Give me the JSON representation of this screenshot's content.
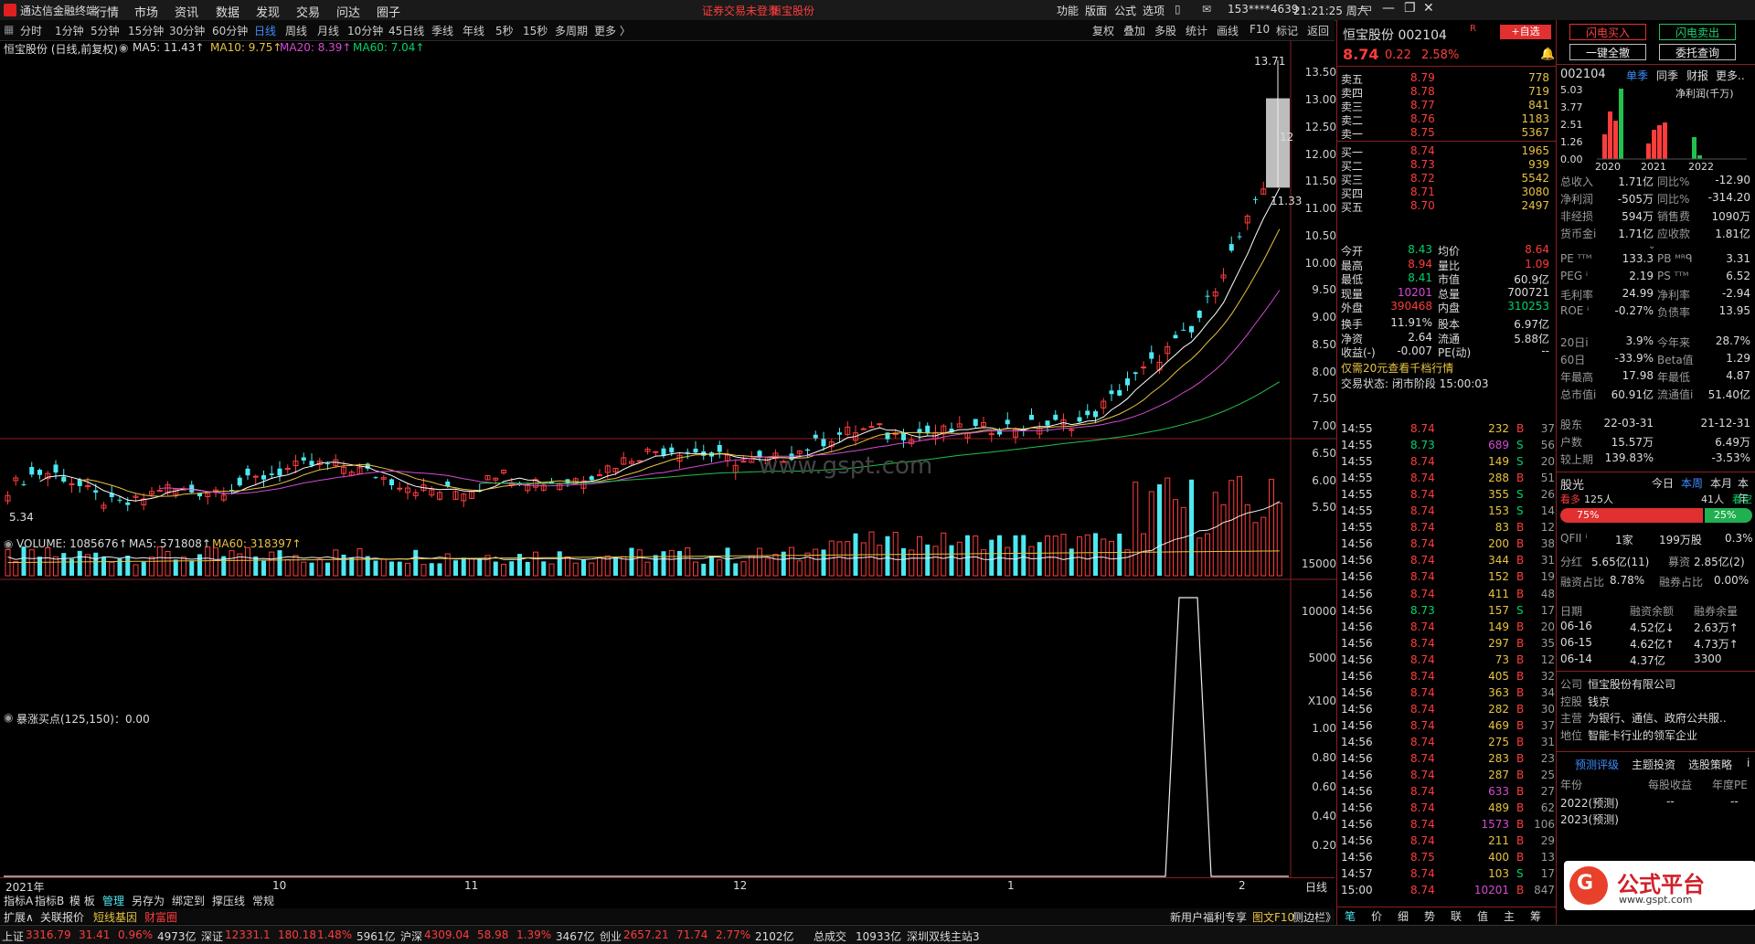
{
  "app": {
    "name": "通达信金融终端",
    "menus": [
      "行情",
      "市场",
      "资讯",
      "数据",
      "发现",
      "交易",
      "问达",
      "圈子"
    ],
    "notice": "证券交易未登录",
    "stock_name_top": "恒宝股份",
    "right_menus": [
      "功能",
      "版面",
      "公式",
      "选项"
    ],
    "user": "153****4639",
    "clock": "21:21:25 周六"
  },
  "toolbar": {
    "items": [
      "分时",
      "1分钟",
      "5分钟",
      "15分钟",
      "30分钟",
      "60分钟",
      "日线",
      "周线",
      "月线",
      "10分钟",
      "45日线",
      "季线",
      "年线",
      "5秒",
      "15秒",
      "多周期",
      "更多 〉"
    ],
    "active": "日线",
    "right_items": [
      "复权",
      "叠加",
      "多股",
      "统计",
      "画线",
      "F10",
      "标记",
      "返回"
    ]
  },
  "main_chart": {
    "title": "恒宝股份 (日线,前复权)",
    "ma5": "MA5: 11.43↑",
    "ma10": "MA10: 9.75↑",
    "ma20": "MA20: 8.39↑",
    "ma60": "MA60: 7.04↑",
    "high_label": "13.71",
    "low_label": "5.34",
    "mid_label": "11.33",
    "box_label": "12",
    "watermark": "www.gspt.com",
    "price_axis": [
      "13.50",
      "13.00",
      "12.50",
      "12.00",
      "11.50",
      "11.00",
      "10.50",
      "10.00",
      "9.50",
      "9.00",
      "8.50",
      "8.00",
      "7.50",
      "7.00",
      "6.50",
      "6.00",
      "5.50"
    ]
  },
  "volume_chart": {
    "label": "VOLUME: 1085676↑",
    "ma5": "MA5: 571808↑",
    "ma60": "MA60: 318397↑",
    "axis": [
      "15000",
      "10000",
      "5000",
      "X100"
    ]
  },
  "indicator_chart": {
    "label": "暴涨买点(125,150)：0.00",
    "axis": [
      "1.00",
      "0.80",
      "0.60",
      "0.40",
      "0.20"
    ]
  },
  "date_axis": [
    "2021年",
    "10",
    "11",
    "12",
    "1",
    "2"
  ],
  "date_axis_right": "日线",
  "bottom_tabs": [
    "指标A",
    "指标B",
    "模 板",
    "管理",
    "另存为",
    "绑定到",
    "撑压线",
    "常规"
  ],
  "bottom_tabs2": [
    "扩展∧",
    "关联报价",
    "短线基因",
    "财富圈"
  ],
  "bottom_tabs2_right": [
    "新用户福利专享",
    "图文F10",
    "侧边栏》"
  ],
  "quote": {
    "name": "恒宝股份 002104",
    "price": "8.74",
    "change": "0.22",
    "pct": "2.58%",
    "add_btn": "+自选",
    "sells": [
      {
        "label": "卖五",
        "price": "8.79",
        "vol": "778"
      },
      {
        "label": "卖四",
        "price": "8.78",
        "vol": "719"
      },
      {
        "label": "卖三",
        "price": "8.77",
        "vol": "841"
      },
      {
        "label": "卖二",
        "price": "8.76",
        "vol": "1183"
      },
      {
        "label": "卖一",
        "price": "8.75",
        "vol": "5367"
      }
    ],
    "buys": [
      {
        "label": "买一",
        "price": "8.74",
        "vol": "1965"
      },
      {
        "label": "买二",
        "price": "8.73",
        "vol": "939"
      },
      {
        "label": "买三",
        "price": "8.72",
        "vol": "5542"
      },
      {
        "label": "买四",
        "price": "8.71",
        "vol": "3080"
      },
      {
        "label": "买五",
        "price": "8.70",
        "vol": "2497"
      }
    ],
    "stats": [
      {
        "k1": "今开",
        "v1": "8.43",
        "c1": "green",
        "k2": "均价",
        "v2": "8.64",
        "c2": "red"
      },
      {
        "k1": "最高",
        "v1": "8.94",
        "c1": "red",
        "k2": "量比",
        "v2": "1.09",
        "c2": "red"
      },
      {
        "k1": "最低",
        "v1": "8.41",
        "c1": "green",
        "k2": "市值",
        "v2": "60.9亿",
        "c2": "white"
      },
      {
        "k1": "现量",
        "v1": "10201",
        "c1": "purple",
        "k2": "总量",
        "v2": "700721",
        "c2": "white"
      },
      {
        "k1": "外盘",
        "v1": "390468",
        "c1": "red",
        "k2": "内盘",
        "v2": "310253",
        "c2": "green"
      }
    ],
    "stats2": [
      {
        "k1": "换手",
        "v1": "11.91%",
        "k2": "股本",
        "v2": "6.97亿"
      },
      {
        "k1": "净资",
        "v1": "2.64",
        "k2": "流通",
        "v2": "5.88亿"
      },
      {
        "k1": "收益(-)",
        "v1": "-0.007",
        "k2": "PE(动)",
        "v2": "--"
      }
    ],
    "promo": "仅需20元查看千档行情",
    "trade_status": "交易状态: 闭市阶段 15:00:03",
    "ticks": [
      {
        "t": "14:55",
        "p": "8.74",
        "v": "232",
        "bs": "B",
        "n": "37"
      },
      {
        "t": "14:55",
        "p": "8.73",
        "v": "689",
        "bs": "S",
        "n": "56"
      },
      {
        "t": "14:55",
        "p": "8.74",
        "v": "149",
        "bs": "S",
        "n": "20"
      },
      {
        "t": "14:55",
        "p": "8.74",
        "v": "288",
        "bs": "B",
        "n": "51"
      },
      {
        "t": "14:55",
        "p": "8.74",
        "v": "355",
        "bs": "S",
        "n": "26"
      },
      {
        "t": "14:55",
        "p": "8.74",
        "v": "153",
        "bs": "S",
        "n": "14"
      },
      {
        "t": "14:55",
        "p": "8.74",
        "v": "83",
        "bs": "B",
        "n": "12"
      },
      {
        "t": "14:56",
        "p": "8.74",
        "v": "200",
        "bs": "B",
        "n": "38"
      },
      {
        "t": "14:56",
        "p": "8.74",
        "v": "344",
        "bs": "B",
        "n": "31"
      },
      {
        "t": "14:56",
        "p": "8.74",
        "v": "152",
        "bs": "B",
        "n": "19"
      },
      {
        "t": "14:56",
        "p": "8.74",
        "v": "411",
        "bs": "B",
        "n": "48"
      },
      {
        "t": "14:56",
        "p": "8.73",
        "v": "157",
        "bs": "S",
        "n": "17"
      },
      {
        "t": "14:56",
        "p": "8.74",
        "v": "149",
        "bs": "B",
        "n": "20"
      },
      {
        "t": "14:56",
        "p": "8.74",
        "v": "297",
        "bs": "B",
        "n": "35"
      },
      {
        "t": "14:56",
        "p": "8.74",
        "v": "73",
        "bs": "B",
        "n": "12"
      },
      {
        "t": "14:56",
        "p": "8.74",
        "v": "405",
        "bs": "B",
        "n": "32"
      },
      {
        "t": "14:56",
        "p": "8.74",
        "v": "363",
        "bs": "B",
        "n": "34"
      },
      {
        "t": "14:56",
        "p": "8.74",
        "v": "282",
        "bs": "B",
        "n": "30"
      },
      {
        "t": "14:56",
        "p": "8.74",
        "v": "469",
        "bs": "B",
        "n": "37"
      },
      {
        "t": "14:56",
        "p": "8.74",
        "v": "275",
        "bs": "B",
        "n": "31"
      },
      {
        "t": "14:56",
        "p": "8.74",
        "v": "283",
        "bs": "B",
        "n": "23"
      },
      {
        "t": "14:56",
        "p": "8.74",
        "v": "287",
        "bs": "B",
        "n": "25"
      },
      {
        "t": "14:56",
        "p": "8.74",
        "v": "633",
        "bs": "B",
        "n": "27"
      },
      {
        "t": "14:56",
        "p": "8.74",
        "v": "489",
        "bs": "B",
        "n": "62"
      },
      {
        "t": "14:56",
        "p": "8.74",
        "v": "1573",
        "bs": "B",
        "n": "106"
      },
      {
        "t": "14:56",
        "p": "8.74",
        "v": "211",
        "bs": "B",
        "n": "29"
      },
      {
        "t": "14:56",
        "p": "8.75",
        "v": "400",
        "bs": "B",
        "n": "13"
      },
      {
        "t": "14:57",
        "p": "8.74",
        "v": "103",
        "bs": "S",
        "n": "17"
      },
      {
        "t": "15:00",
        "p": "8.74",
        "v": "10201",
        "bs": "B",
        "n": "847"
      }
    ],
    "bottom_tabs": [
      "笔",
      "价",
      "细",
      "势",
      "联",
      "值",
      "主",
      "筹"
    ]
  },
  "fundamental": {
    "buttons": [
      "闪电买入",
      "闪电卖出",
      "一键全撤",
      "委托查询"
    ],
    "code": "002104",
    "tabs": [
      "单季",
      "同季",
      "财报",
      "更多.."
    ],
    "tab_active": "单季",
    "bar_title": "净利润(千万)",
    "bar_axis": [
      "5.03",
      "3.77",
      "2.51",
      "1.26",
      "0.00"
    ],
    "bar_years": [
      "2020",
      "2021",
      "2022"
    ],
    "fin_rows": [
      {
        "k1": "总收入",
        "v1": "1.71亿",
        "k2": "同比%",
        "v2": "-12.90"
      },
      {
        "k1": "净利润",
        "v1": "-505万",
        "k2": "同比%",
        "v2": "-314.20"
      },
      {
        "k1": "非经损",
        "v1": "594万",
        "k2": "销售费",
        "v2": "1090万"
      },
      {
        "k1": "货币金i",
        "v1": "1.71亿",
        "k2": "应收款",
        "v2": "1.81亿"
      }
    ],
    "val_rows": [
      {
        "k1": "PE ᵀᵀᴹ",
        "v1": "133.3",
        "k2": "PB ᴹᴿᑫ",
        "v2": "3.31"
      },
      {
        "k1": "PEG ⁱ",
        "v1": "2.19",
        "k2": "PS ᵀᵀᴹ",
        "v2": "6.52"
      },
      {
        "k1": "毛利率",
        "v1": "24.99",
        "k2": "净利率",
        "v2": "-2.94"
      },
      {
        "k1": "ROE ⁱ",
        "v1": "-0.27%",
        "k2": "负债率",
        "v2": "13.95"
      }
    ],
    "perf_rows": [
      {
        "k1": "20日i",
        "v1": "3.9%",
        "k2": "今年来",
        "v2": "28.7%"
      },
      {
        "k1": "60日",
        "v1": "-33.9%",
        "k2": "Beta值",
        "v2": "1.29"
      },
      {
        "k1": "年最高",
        "v1": "17.98",
        "k2": "年最低",
        "v2": "4.87"
      },
      {
        "k1": "总市值i",
        "v1": "60.91亿",
        "k2": "流通值i",
        "v2": "51.40亿"
      }
    ],
    "holder_rows": [
      {
        "k1": "股东",
        "v1": "22-03-31",
        "v2": "21-12-31"
      },
      {
        "k1": "户数",
        "v1": "15.57万",
        "v2": "6.49万"
      },
      {
        "k1": "较上期",
        "v1": "139.83%",
        "v2": "-3.53%"
      }
    ],
    "sentiment": {
      "title": "股光",
      "periods": [
        "今日",
        "本周",
        "本月",
        "本年"
      ],
      "period_active": "本周",
      "bull_label": "看多",
      "bull_count": "125人",
      "bear_count": "41人",
      "bear_label": "看空",
      "bull_pct": "75%",
      "bear_pct": "25%"
    },
    "qfii": {
      "k": "QFII ⁱ",
      "v1": "1家",
      "v2": "199万股",
      "v3": "0.3%"
    },
    "dividend": {
      "k1": "分红",
      "v1": "5.65亿(11)",
      "k2": "募资",
      "v2": "2.85亿(2)"
    },
    "margin": {
      "k1": "融资占比",
      "v1": "8.78%",
      "k2": "融券占比",
      "v2": "0.00%"
    },
    "margin_head": [
      "日期",
      "融资余额",
      "融券余量"
    ],
    "margin_rows": [
      {
        "d": "06-16",
        "a": "4.52亿↓",
        "b": "2.63万↑"
      },
      {
        "d": "06-15",
        "a": "4.62亿↑",
        "b": "4.73万↑"
      },
      {
        "d": "06-14",
        "a": "4.37亿",
        "b": "3300"
      }
    ],
    "company": [
      {
        "k": "公司",
        "v": "恒宝股份有限公司"
      },
      {
        "k": "控股",
        "v": "钱京"
      },
      {
        "k": "主营",
        "v": "为银行、通信、政府公共服.."
      },
      {
        "k": "地位",
        "v": "智能卡行业的领军企业"
      }
    ],
    "rating_tabs": [
      "预测评级",
      "主题投资",
      "选股策略",
      "i"
    ],
    "forecast_head": [
      "年份",
      "每股收益",
      "年度PE"
    ],
    "forecast_rows": [
      {
        "y": "2022(预测)",
        "e": "--",
        "pe": "--"
      },
      {
        "y": "2023(预测)",
        "e": "",
        "pe": ""
      }
    ],
    "brand_text": "公式平台",
    "brand_url": "www.gspt.com"
  },
  "statusbar": [
    {
      "name": "上证",
      "p": "3316.79",
      "c": "31.41",
      "pct": "0.96%",
      "a": "4973亿"
    },
    {
      "name": "深证",
      "p": "12331.1",
      "c": "180.18",
      "pct": "1.48%",
      "a": "5961亿"
    },
    {
      "name": "沪深",
      "p": "4309.04",
      "c": "58.98",
      "pct": "1.39%",
      "a": "3467亿"
    },
    {
      "name": "创业",
      "p": "2657.21",
      "c": "71.74",
      "pct": "2.77%",
      "a": "2102亿"
    }
  ],
  "status_extra": [
    "总成交",
    "10933亿",
    "深圳双线主站3"
  ],
  "colors": {
    "up": "#ff3c3c",
    "down": "#4de8f0",
    "ma5": "#ffffff",
    "ma10": "#e8c341",
    "ma20": "#d44bd4",
    "ma60": "#22c04c"
  }
}
